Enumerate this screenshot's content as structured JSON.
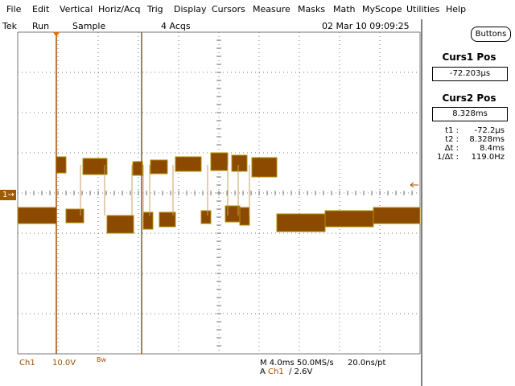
{
  "menu": [
    "File",
    "Edit",
    "Vertical",
    "Horiz/Acq",
    "Trig",
    "Display",
    "Cursors",
    "Measure",
    "Masks",
    "Math",
    "MyScope",
    "Utilities",
    "Help"
  ],
  "status": {
    "brand": "Tek",
    "state": "Run",
    "mode": "Sample",
    "acquisitions": "4 Acqs",
    "datetime": "02 Mar 10 09:09:25"
  },
  "buttons": "Buttons",
  "cursors": {
    "curs1_title": "Curs1 Pos",
    "curs1_value": "-72.203µs",
    "curs2_title": "Curs2 Pos",
    "curs2_value": "8.328ms"
  },
  "readout": [
    {
      "label": "t1 :",
      "value": "-72.2µs"
    },
    {
      "label": "t2 :",
      "value": "8.328ms"
    },
    {
      "label": "Δt :",
      "value": "8.4ms"
    },
    {
      "label": "1/Δt :",
      "value": "119.0Hz"
    }
  ],
  "channel_marker": "1",
  "footer": {
    "channel": "Ch1",
    "scale": "10.0V",
    "bandwidth": "Bw",
    "timebase": "M 4.0ms 50.0MS/s",
    "resolution": "20.0ns/pt",
    "trigger_prefix": "A",
    "trigger_source": "Ch1",
    "trigger_slope": "∕",
    "trigger_level": "2.6V"
  }
}
